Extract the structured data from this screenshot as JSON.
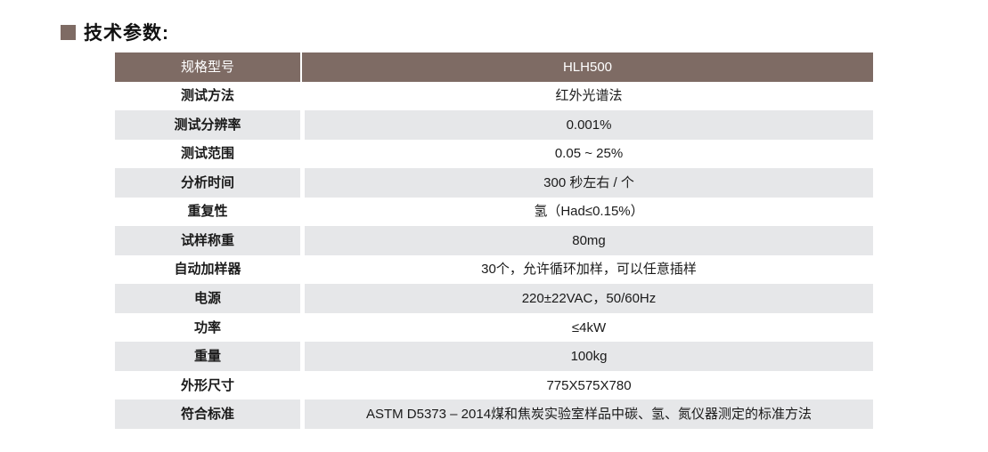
{
  "page": {
    "section_title": "技术参数:"
  },
  "colors": {
    "header_bg": "#7e6b64",
    "stripe_bg": "#e6e7e9",
    "header_text": "#ffffff",
    "body_text": "#1a1a1a",
    "bullet": "#7e6b64"
  },
  "table": {
    "header": {
      "label": "规格型号",
      "value": "HLH500"
    },
    "rows": [
      {
        "label": "测试方法",
        "value": "红外光谱法"
      },
      {
        "label": "测试分辨率",
        "value": "0.001%"
      },
      {
        "label": "测试范围",
        "value": "0.05 ~ 25%"
      },
      {
        "label": "分析时间",
        "value": "300 秒左右 / 个"
      },
      {
        "label": "重复性",
        "value": "氢（Had≤0.15%）"
      },
      {
        "label": "试样称重",
        "value": "80mg"
      },
      {
        "label": "自动加样器",
        "value": "30个，允许循环加样，可以任意插样"
      },
      {
        "label": "电源",
        "value": "220±22VAC，50/60Hz"
      },
      {
        "label": "功率",
        "value": "≤4kW"
      },
      {
        "label": "重量",
        "value": "100kg"
      },
      {
        "label": "外形尺寸",
        "value": "775X575X780"
      },
      {
        "label": "符合标准",
        "value": "ASTM D5373 – 2014煤和焦炭实验室样品中碳、氢、氮仪器测定的标准方法"
      }
    ]
  }
}
